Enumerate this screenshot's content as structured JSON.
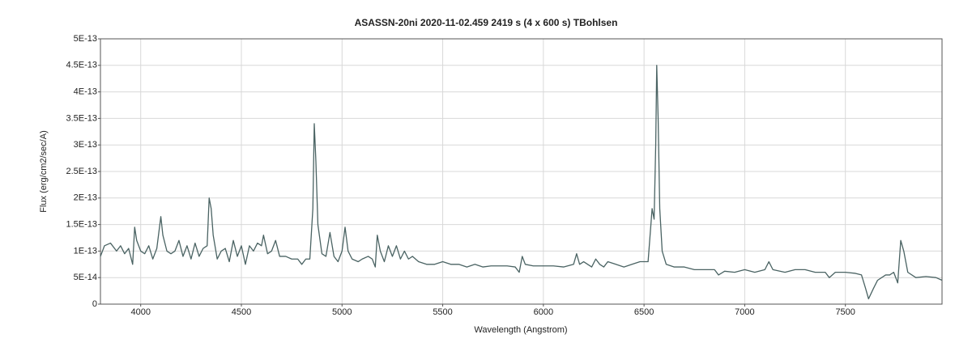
{
  "chart_data": {
    "type": "line",
    "title": "ASASSN-20ni  2020-11-02.459  2419 s (4 x 600 s)  TBohlsen",
    "x_label": "Wavelength (Angstrom)",
    "y_label": "Flux (erg/cm2/sec/A)",
    "color": "#4a6363",
    "grid": true,
    "xlim": [
      3800,
      7980
    ],
    "xticks": [
      4000,
      4500,
      5000,
      5500,
      6000,
      6500,
      7000,
      7500
    ],
    "ylim": [
      0,
      5e-13
    ],
    "yticks": [
      0,
      {
        "value": 5e-14,
        "label": "5E-14"
      },
      {
        "value": 1e-13,
        "label": "1E-13"
      },
      {
        "value": 1.5e-13,
        "label": "1.5E-13"
      },
      {
        "value": 2e-13,
        "label": "2E-13"
      },
      {
        "value": 2.5e-13,
        "label": "2.5E-13"
      },
      {
        "value": 3e-13,
        "label": "3E-13"
      },
      {
        "value": 3.5e-13,
        "label": "3.5E-13"
      },
      {
        "value": 4e-13,
        "label": "4E-13"
      },
      {
        "value": 4.5e-13,
        "label": "4.5E-13"
      },
      {
        "value": 5e-13,
        "label": "5E-13"
      }
    ],
    "x": [
      3800,
      3820,
      3850,
      3880,
      3900,
      3920,
      3940,
      3960,
      3970,
      3980,
      4000,
      4020,
      4040,
      4060,
      4080,
      4100,
      4110,
      4130,
      4150,
      4170,
      4190,
      4210,
      4230,
      4250,
      4270,
      4290,
      4310,
      4330,
      4340,
      4350,
      4360,
      4380,
      4400,
      4420,
      4440,
      4460,
      4480,
      4500,
      4520,
      4540,
      4560,
      4580,
      4600,
      4610,
      4630,
      4650,
      4670,
      4690,
      4720,
      4750,
      4780,
      4800,
      4820,
      4840,
      4855,
      4862,
      4870,
      4880,
      4900,
      4920,
      4940,
      4960,
      4980,
      5000,
      5015,
      5030,
      5050,
      5080,
      5100,
      5130,
      5150,
      5165,
      5175,
      5190,
      5210,
      5230,
      5250,
      5270,
      5290,
      5310,
      5330,
      5350,
      5380,
      5420,
      5460,
      5500,
      5540,
      5580,
      5620,
      5660,
      5700,
      5740,
      5780,
      5820,
      5860,
      5880,
      5895,
      5910,
      5950,
      6000,
      6050,
      6100,
      6150,
      6165,
      6180,
      6200,
      6240,
      6260,
      6280,
      6300,
      6320,
      6360,
      6400,
      6440,
      6480,
      6520,
      6540,
      6550,
      6558,
      6563,
      6570,
      6578,
      6590,
      6610,
      6650,
      6700,
      6750,
      6800,
      6850,
      6870,
      6900,
      6950,
      7000,
      7050,
      7100,
      7120,
      7140,
      7200,
      7250,
      7300,
      7350,
      7400,
      7420,
      7450,
      7500,
      7550,
      7580,
      7600,
      7615,
      7640,
      7660,
      7700,
      7720,
      7740,
      7760,
      7775,
      7790,
      7810,
      7850,
      7900,
      7950,
      7980
    ],
    "values": [
      9e-14,
      1.1e-13,
      1.15e-13,
      1e-13,
      1.1e-13,
      9.5e-14,
      1.05e-13,
      7.5e-14,
      1.45e-13,
      1.2e-13,
      1e-13,
      9.5e-14,
      1.1e-13,
      8.5e-14,
      1.05e-13,
      1.65e-13,
      1.3e-13,
      1e-13,
      9.5e-14,
      1e-13,
      1.2e-13,
      9e-14,
      1.1e-13,
      8.5e-14,
      1.15e-13,
      9e-14,
      1.05e-13,
      1.1e-13,
      2e-13,
      1.8e-13,
      1.3e-13,
      8.5e-14,
      1e-13,
      1.05e-13,
      8e-14,
      1.2e-13,
      9e-14,
      1.1e-13,
      7.5e-14,
      1.1e-13,
      1e-13,
      1.15e-13,
      1.1e-13,
      1.3e-13,
      9.5e-14,
      1e-13,
      1.2e-13,
      9e-14,
      9e-14,
      8.5e-14,
      8.5e-14,
      7.5e-14,
      8.5e-14,
      8.5e-14,
      1.8e-13,
      3.4e-13,
      2.7e-13,
      1.5e-13,
      9.5e-14,
      9e-14,
      1.35e-13,
      9e-14,
      8e-14,
      1e-13,
      1.45e-13,
      1e-13,
      8.5e-14,
      8e-14,
      8.5e-14,
      9e-14,
      8.5e-14,
      7e-14,
      1.3e-13,
      1e-13,
      8e-14,
      1.1e-13,
      9e-14,
      1.1e-13,
      8.5e-14,
      1e-13,
      8.5e-14,
      9e-14,
      8e-14,
      7.5e-14,
      7.5e-14,
      8e-14,
      7.5e-14,
      7.5e-14,
      7e-14,
      7.5e-14,
      7e-14,
      7.2e-14,
      7.2e-14,
      7.2e-14,
      7e-14,
      6e-14,
      9e-14,
      7.5e-14,
      7.2e-14,
      7.2e-14,
      7.2e-14,
      7e-14,
      7.5e-14,
      9.5e-14,
      7.5e-14,
      8e-14,
      7e-14,
      8.5e-14,
      7.5e-14,
      7e-14,
      8e-14,
      7.5e-14,
      7e-14,
      7.5e-14,
      8e-14,
      8e-14,
      1.8e-13,
      1.6e-13,
      3e-13,
      4.5e-13,
      3.5e-13,
      1.8e-13,
      1e-13,
      7.5e-14,
      7e-14,
      7e-14,
      6.5e-14,
      6.5e-14,
      6.5e-14,
      5.5e-14,
      6.2e-14,
      6e-14,
      6.5e-14,
      6e-14,
      6.5e-14,
      8e-14,
      6.5e-14,
      6e-14,
      6.5e-14,
      6.5e-14,
      6e-14,
      6e-14,
      5e-14,
      6e-14,
      6e-14,
      5.8e-14,
      5.5e-14,
      3e-14,
      1e-14,
      3e-14,
      4.5e-14,
      5.5e-14,
      5.5e-14,
      6e-14,
      4e-14,
      1.2e-13,
      1e-13,
      6e-14,
      5e-14,
      5.2e-14,
      5e-14,
      4.5e-14
    ]
  }
}
